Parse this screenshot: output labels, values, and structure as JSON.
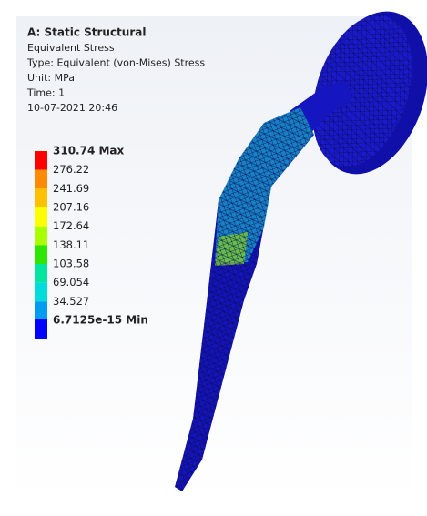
{
  "header": {
    "title": "A: Static Structural",
    "lines": [
      "Equivalent Stress",
      "Type: Equivalent (von-Mises) Stress",
      "Unit: MPa",
      "Time: 1",
      "10-07-2021 20:46"
    ]
  },
  "legend": {
    "labels": [
      "310.74 Max",
      "276.22",
      "241.69",
      "207.16",
      "172.64",
      "138.11",
      "103.58",
      "69.054",
      "34.527",
      "6.7125e-15 Min"
    ],
    "colors": [
      "#ff0000",
      "#ff8a00",
      "#ffc000",
      "#ffff00",
      "#aaff00",
      "#2ee600",
      "#00e6a0",
      "#00dcdc",
      "#009cf0",
      "#0000ff"
    ]
  }
}
